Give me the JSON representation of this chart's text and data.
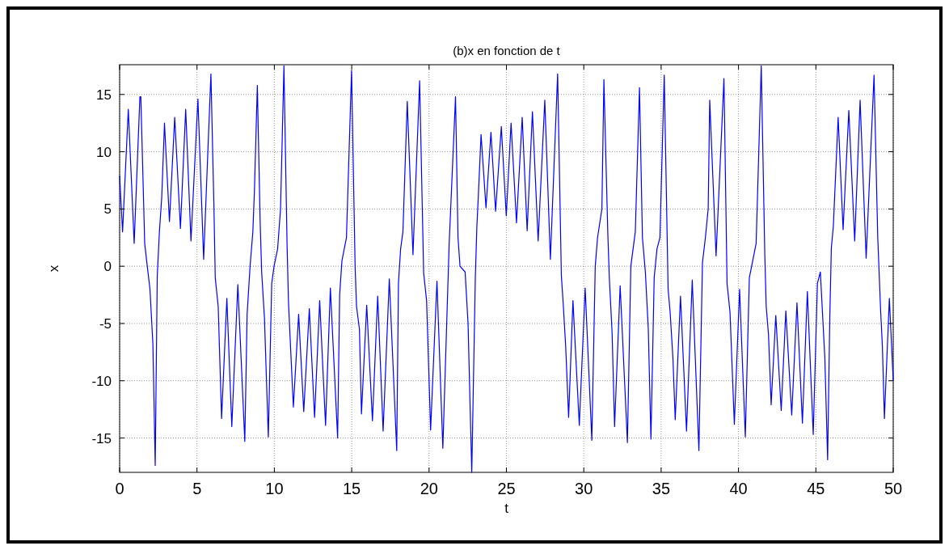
{
  "chart_data": {
    "type": "line",
    "title": "(b)x en fonction de t",
    "xlabel": "t",
    "ylabel": "x",
    "xlim": [
      0,
      50
    ],
    "ylim": [
      -18,
      17.6
    ],
    "xticks": [
      0,
      5,
      10,
      15,
      20,
      25,
      30,
      35,
      40,
      45,
      50
    ],
    "yticks": [
      -15,
      -10,
      -5,
      0,
      5,
      10,
      15
    ],
    "grid": true,
    "marker": "none",
    "line_style": "solid",
    "series": [
      {
        "color": "#0000ff",
        "x": [
          0,
          0.19,
          0.56,
          0.94,
          1.31,
          1.37,
          1.62,
          1.77,
          1.96,
          2.15,
          2.3,
          2.43,
          2.57,
          2.72,
          2.9,
          3.22,
          3.56,
          3.93,
          4.27,
          4.61,
          5.06,
          5.43,
          5.9,
          6.09,
          6.18,
          6.37,
          6.59,
          6.93,
          7.25,
          7.64,
          8.09,
          8.24,
          8.43,
          8.61,
          8.71,
          8.9,
          9.08,
          9.18,
          9.36,
          9.61,
          9.83,
          9.98,
          10.21,
          10.4,
          10.62,
          10.82,
          10.91,
          11.01,
          11.23,
          11.57,
          11.9,
          12.26,
          12.6,
          12.93,
          13.31,
          13.62,
          14.09,
          14.22,
          14.37,
          14.66,
          14.99,
          15.22,
          15.31,
          15.5,
          15.63,
          15.97,
          16.34,
          16.68,
          17.03,
          17.43,
          17.91,
          18.02,
          18.16,
          18.31,
          18.59,
          18.96,
          19.39,
          19.65,
          19.84,
          20.1,
          20.51,
          20.89,
          21.3,
          21.71,
          21.87,
          22.0,
          22.33,
          22.52,
          22.76,
          22.99,
          23.09,
          23.18,
          23.36,
          23.68,
          24.0,
          24.3,
          24.67,
          24.99,
          25.3,
          25.65,
          26.02,
          26.34,
          26.68,
          27.05,
          27.48,
          27.84,
          28.31,
          28.55,
          28.68,
          28.83,
          29.02,
          29.3,
          29.71,
          30.09,
          30.52,
          30.74,
          30.89,
          31.17,
          31.3,
          31.55,
          31.65,
          31.83,
          31.99,
          32.35,
          32.82,
          33.04,
          33.33,
          33.48,
          33.6,
          33.79,
          33.98,
          34.17,
          34.34,
          34.55,
          34.73,
          34.92,
          35.2,
          35.45,
          35.58,
          35.76,
          35.91,
          36.25,
          36.64,
          37.01,
          37.44,
          37.67,
          37.86,
          38.04,
          38.14,
          38.55,
          39.06,
          39.26,
          39.45,
          39.73,
          40.07,
          40.44,
          40.7,
          40.85,
          41.14,
          41.47,
          41.7,
          41.79,
          41.94,
          42.11,
          42.41,
          42.76,
          43.06,
          43.44,
          43.78,
          44.13,
          44.45,
          44.83,
          45.1,
          45.29,
          45.58,
          45.76,
          45.9,
          46.0,
          46.13,
          46.44,
          46.76,
          47.13,
          47.51,
          47.86,
          48.25,
          48.76,
          49.0,
          49.19,
          49.3,
          49.43,
          49.75,
          50.0
        ],
        "values": [
          7.9,
          3.0,
          13.7,
          2.0,
          14.8,
          14.8,
          2.0,
          0.2,
          -2.0,
          -6.8,
          -17.4,
          -0.9,
          3.0,
          6.0,
          12.5,
          3.9,
          13.0,
          3.3,
          13.7,
          2.2,
          14.6,
          0.6,
          16.8,
          5.5,
          -1.0,
          -3.5,
          -13.3,
          -2.8,
          -14.0,
          -1.6,
          -15.3,
          -4.2,
          0.0,
          3.0,
          6.5,
          15.8,
          4.0,
          -0.5,
          -4.5,
          -14.9,
          -1.5,
          0.0,
          1.5,
          5.0,
          17.5,
          2.0,
          -3.0,
          -6.0,
          -12.3,
          -4.2,
          -12.7,
          -3.7,
          -13.2,
          -3.0,
          -13.9,
          -1.9,
          -15.0,
          -2.5,
          0.5,
          2.5,
          17.1,
          0.0,
          -3.5,
          -5.5,
          -12.9,
          -3.4,
          -13.5,
          -2.6,
          -14.4,
          -1.1,
          -16.1,
          -1.5,
          1.5,
          3.0,
          14.4,
          1.0,
          16.2,
          -0.6,
          -3.0,
          -14.3,
          -1.3,
          -15.9,
          2.0,
          14.8,
          2.5,
          0.0,
          -0.5,
          -5.0,
          -18.0,
          -1.0,
          3.5,
          6.0,
          11.5,
          5.1,
          11.7,
          4.8,
          12.2,
          4.4,
          12.5,
          3.8,
          13.0,
          3.1,
          13.5,
          2.2,
          14.5,
          0.6,
          16.8,
          -0.8,
          -3.5,
          -7.0,
          -13.2,
          -3.0,
          -13.9,
          -1.9,
          -15.2,
          0.0,
          2.5,
          5.0,
          16.3,
          3.0,
          -1.0,
          -5.8,
          -14.0,
          -1.7,
          -15.4,
          0.0,
          3.0,
          10.0,
          15.6,
          2.5,
          -0.5,
          -5.5,
          -15.1,
          -1.0,
          1.5,
          2.5,
          16.7,
          -2.0,
          -4.0,
          -8.0,
          -13.4,
          -2.6,
          -14.4,
          -1.2,
          -16.1,
          0.3,
          2.5,
          5.0,
          14.5,
          0.9,
          16.4,
          -1.5,
          -4.0,
          -13.8,
          -2.0,
          -14.9,
          -1.0,
          0.0,
          2.0,
          17.5,
          1.0,
          -3.5,
          -6.0,
          -12.1,
          -4.3,
          -12.6,
          -3.9,
          -13.0,
          -3.2,
          -13.7,
          -2.2,
          -14.7,
          -1.5,
          -0.5,
          -8.0,
          -16.9,
          -4.5,
          1.6,
          3.5,
          13.0,
          3.2,
          13.6,
          2.2,
          14.5,
          0.7,
          16.7,
          2.5,
          -4.0,
          -7.0,
          -13.3,
          -2.8,
          -10.0
        ]
      }
    ]
  }
}
